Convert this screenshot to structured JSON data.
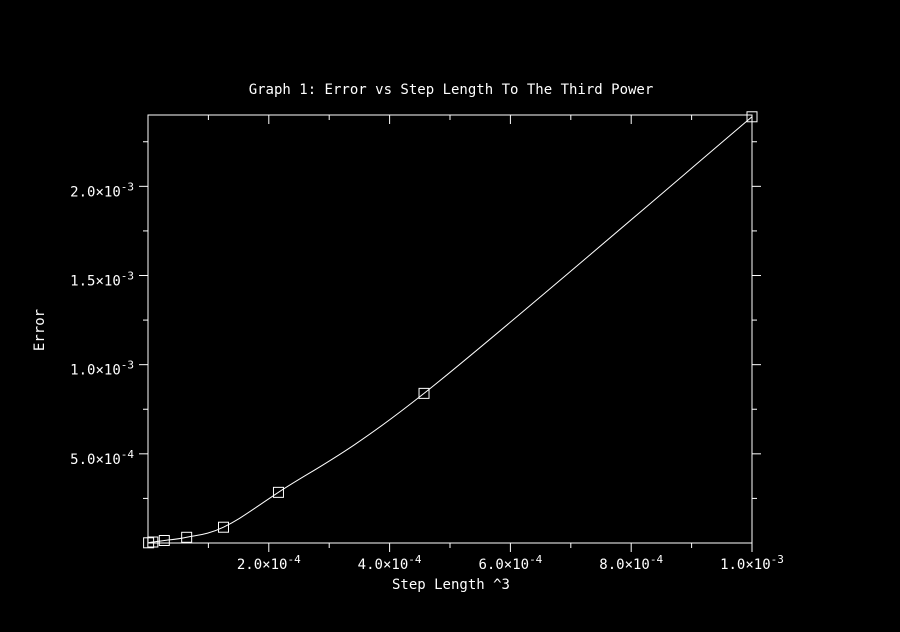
{
  "chart_data": {
    "type": "scatter",
    "title": "Graph 1: Error vs Step Length To The Third Power",
    "xlabel": "Step Length ^3",
    "ylabel": "Error",
    "xlim": [
      0,
      0.001
    ],
    "ylim": [
      0,
      0.0024
    ],
    "x_ticks": [
      {
        "value": 0.0002,
        "label": "2.0×10",
        "exp": "-4"
      },
      {
        "value": 0.0004,
        "label": "4.0×10",
        "exp": "-4"
      },
      {
        "value": 0.0006,
        "label": "6.0×10",
        "exp": "-4"
      },
      {
        "value": 0.0008,
        "label": "8.0×10",
        "exp": "-4"
      },
      {
        "value": 0.001,
        "label": "1.0×10",
        "exp": "-3"
      }
    ],
    "y_ticks": [
      {
        "value": 0.0005,
        "label": "5.0×10",
        "exp": "-4"
      },
      {
        "value": 0.001,
        "label": "1.0×10",
        "exp": "-3"
      },
      {
        "value": 0.0015,
        "label": "1.5×10",
        "exp": "-3"
      },
      {
        "value": 0.002,
        "label": "2.0×10",
        "exp": "-3"
      }
    ],
    "x_minor_step": 0.0001,
    "y_minor_step": 0.00025,
    "grid": false,
    "series": [
      {
        "x": [
          1e-06,
          8e-06,
          2.7e-05,
          6.4e-05,
          0.000125,
          0.000216,
          0.000457,
          0.001
        ],
        "y": [
          1.2e-06,
          5.5e-06,
          1.4e-05,
          3.2e-05,
          8.85e-05,
          0.000284,
          0.000839,
          0.00239
        ],
        "marker": "square",
        "line": "smooth",
        "color": "#ffffff"
      }
    ]
  }
}
